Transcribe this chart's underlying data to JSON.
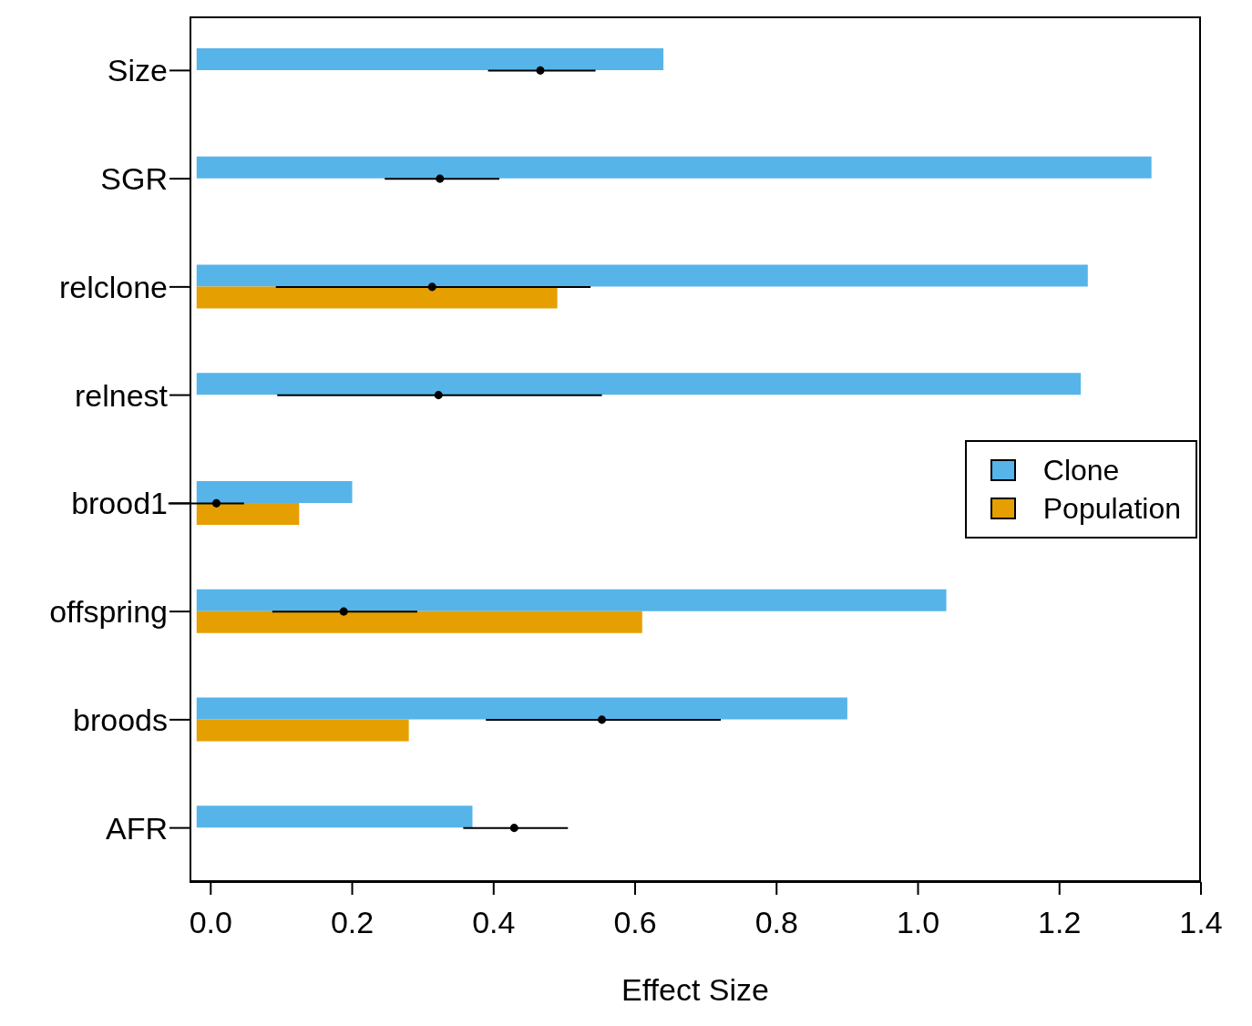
{
  "chart_data": {
    "type": "bar",
    "orientation": "horizontal",
    "xlabel": "Effect Size",
    "categories": [
      "Size",
      "SGR",
      "relclone",
      "relnest",
      "brood1",
      "offspring",
      "broods",
      "AFR"
    ],
    "series": [
      {
        "name": "Clone",
        "color": "#56b4e9",
        "base": [
          -0.02,
          -0.02,
          -0.02,
          -0.02,
          -0.02,
          -0.02,
          -0.02,
          -0.02
        ],
        "values": [
          0.66,
          1.35,
          1.26,
          1.25,
          0.22,
          1.06,
          0.92,
          0.39
        ]
      },
      {
        "name": "Population",
        "color": "#e69f00",
        "base": [
          null,
          null,
          -0.02,
          null,
          -0.02,
          -0.02,
          -0.02,
          null
        ],
        "values": [
          null,
          null,
          0.51,
          null,
          0.145,
          0.63,
          0.3,
          null
        ]
      },
      {
        "type": "scatter",
        "color": "#000000",
        "marker": "circle",
        "values": [
          0.466,
          0.324,
          0.313,
          0.322,
          0.008,
          0.188,
          0.553,
          0.429
        ],
        "errors": [
          [
            0.392,
            0.544
          ],
          [
            0.246,
            0.408
          ],
          [
            0.092,
            0.537
          ],
          [
            0.094,
            0.553
          ],
          [
            -0.06,
            0.047
          ],
          [
            0.087,
            0.292
          ],
          [
            0.389,
            0.721
          ],
          [
            0.357,
            0.505
          ]
        ]
      }
    ],
    "xlim": [
      -0.03,
      1.4
    ],
    "xticks": [
      {
        "value": 0,
        "label": "0.0"
      },
      0.2,
      0.4,
      0.6,
      0.8,
      {
        "value": 1,
        "label": "1.0"
      },
      1.2,
      1.4
    ],
    "legend": "right",
    "grid": false
  }
}
